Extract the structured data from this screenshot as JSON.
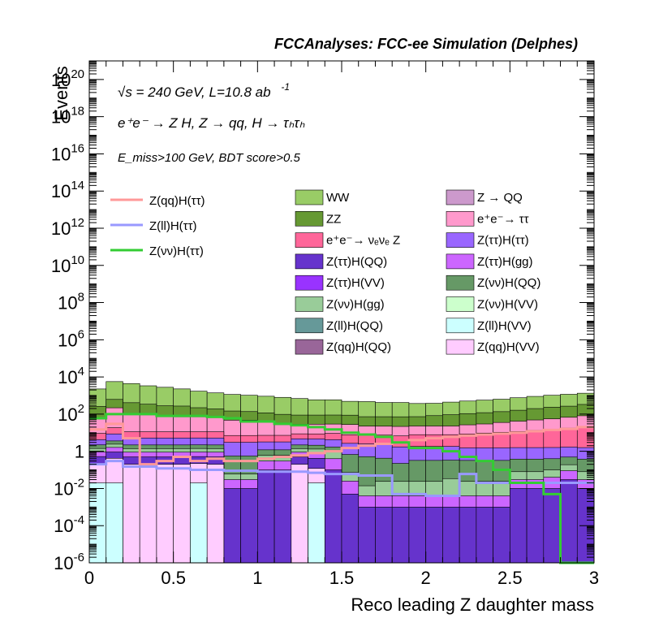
{
  "header": {
    "title": "FCCAnalyses: FCC-ee Simulation (Delphes)"
  },
  "annotations": {
    "energy_line": "√s = 240 GeV, L=10.8 ab",
    "energy_sup": "-1",
    "process_line": "e⁺e⁻ → Z H, Z → qq, H → τₕτₕ",
    "cut_line": "E_miss>100 GeV, BDT score>0.5"
  },
  "chart_data": {
    "type": "area",
    "xlabel": "Reco leading Z daughter mass",
    "ylabel": "Events",
    "xlim": [
      0,
      3
    ],
    "ylim": [
      1e-06,
      1e+21
    ],
    "log_y": true,
    "bin_edges": [
      0,
      0.1,
      0.2,
      0.3,
      0.4,
      0.5,
      0.6,
      0.7,
      0.8,
      0.9,
      1.0,
      1.1,
      1.2,
      1.3,
      1.4,
      1.5,
      1.6,
      1.7,
      1.8,
      1.9,
      2.0,
      2.1,
      2.2,
      2.3,
      2.4,
      2.5,
      2.6,
      2.7,
      2.8,
      2.9,
      3.0
    ],
    "x_ticks": [
      "0",
      "0.5",
      "1",
      "1.5",
      "2",
      "2.5",
      "3"
    ],
    "y_ticks": [
      {
        "base": "10",
        "exp": "-6",
        "value": 1e-06
      },
      {
        "base": "10",
        "exp": "-4",
        "value": 0.0001
      },
      {
        "base": "10",
        "exp": "-2",
        "value": 0.01
      },
      {
        "base": "1",
        "exp": "",
        "value": 1
      },
      {
        "base": "10",
        "exp": "2",
        "value": 100.0
      },
      {
        "base": "10",
        "exp": "4",
        "value": 10000.0
      },
      {
        "base": "10",
        "exp": "6",
        "value": 1000000.0
      },
      {
        "base": "10",
        "exp": "8",
        "value": 100000000.0
      },
      {
        "base": "10",
        "exp": "10",
        "value": 10000000000.0
      },
      {
        "base": "10",
        "exp": "12",
        "value": 1000000000000.0
      },
      {
        "base": "10",
        "exp": "14",
        "value": 100000000000000.0
      },
      {
        "base": "10",
        "exp": "16",
        "value": 1e+16
      },
      {
        "base": "10",
        "exp": "18",
        "value": 1e+18
      },
      {
        "base": "10",
        "exp": "20",
        "value": 1e+20
      }
    ],
    "stack_levels": [
      {
        "name": "Z(ll)H(VV)",
        "color": "#ccffff",
        "values": [
          0.02,
          0.02,
          0,
          0,
          0,
          0,
          0.02,
          0,
          0,
          0,
          0,
          0,
          0,
          0.02,
          0,
          0,
          0,
          0,
          0,
          0,
          0,
          0,
          0,
          0,
          0,
          0,
          0,
          0,
          0,
          0
        ]
      },
      {
        "name": "Z(qq)H(VV)",
        "color": "#ffccff",
        "values": [
          0.2,
          0.4,
          0.2,
          0.2,
          0.2,
          0.2,
          0.2,
          0.2,
          0,
          0,
          0,
          0,
          0.2,
          0.1,
          0,
          0,
          0,
          0,
          0,
          0,
          0,
          0,
          0,
          0,
          0,
          0,
          0,
          0,
          0,
          0
        ]
      },
      {
        "name": "Z(ττ)H(QQ)",
        "color": "#6633cc",
        "values": [
          0.3,
          0.5,
          0.3,
          0.3,
          0.3,
          0.3,
          0.3,
          0.3,
          0.01,
          0.01,
          0.1,
          0.1,
          0.3,
          0.3,
          0.1,
          0.005,
          0.001,
          0.001,
          0.001,
          0.001,
          0.001,
          0.001,
          0.001,
          0.001,
          0.001,
          0.01,
          0.01,
          0.01,
          0.03,
          0.01
        ]
      },
      {
        "name": "Z(ττ)H(gg)",
        "color": "#cc66ff",
        "values": [
          0.4,
          0.7,
          0.4,
          0.4,
          0.4,
          0.4,
          0.4,
          0.4,
          0.02,
          0.02,
          0.2,
          0.2,
          0.4,
          0.4,
          0.3,
          0.02,
          0.003,
          0.003,
          0.003,
          0.003,
          0.003,
          0.003,
          0.003,
          0.003,
          0.003,
          0.02,
          0.02,
          0.03,
          0.06,
          0.02
        ]
      },
      {
        "name": "Z(νν)H(gg)",
        "color": "#99cc99",
        "values": [
          0.5,
          0.8,
          0.5,
          0.5,
          0.5,
          0.5,
          0.5,
          0.5,
          0.03,
          0.03,
          0.3,
          0.3,
          0.5,
          0.5,
          0.5,
          0.05,
          0.01,
          0.02,
          0.02,
          0.02,
          0.02,
          0.03,
          0.02,
          0.02,
          0.02,
          0.05,
          0.05,
          0.06,
          0.1,
          0.05
        ]
      },
      {
        "name": "Z(νν)H(QQ)",
        "color": "#669966",
        "values": [
          0.8,
          1.2,
          0.8,
          0.8,
          0.8,
          0.8,
          0.8,
          0.8,
          0.5,
          0.5,
          0.6,
          0.6,
          0.8,
          0.8,
          0.8,
          0.6,
          0.5,
          0.4,
          0.2,
          0.3,
          0.3,
          0.3,
          0.3,
          0.3,
          0.3,
          0.3,
          0.3,
          0.3,
          0.3,
          0.3
        ]
      },
      {
        "name": "Z(ττ)H(ττ)",
        "color": "#9966ff",
        "values": [
          2,
          5,
          3,
          3,
          3,
          3,
          3,
          3,
          2.5,
          2.5,
          2,
          2,
          2.5,
          2.5,
          2.5,
          2,
          2,
          2,
          1.5,
          1.5,
          1.5,
          1.5,
          1.2,
          1.2,
          1.2,
          1.2,
          1.2,
          1.2,
          1.2,
          1.2
        ]
      },
      {
        "name": "e⁺e⁻ → νₑνₑ Z",
        "color": "#ff6699",
        "values": [
          5,
          10,
          6,
          6,
          6,
          6,
          6,
          6,
          4,
          4,
          4,
          4,
          4,
          4,
          5,
          5,
          5,
          5,
          5,
          6,
          6,
          6,
          7,
          8,
          9,
          10,
          12,
          14,
          16,
          20
        ]
      },
      {
        "name": "e⁺e⁻ → ττ",
        "color": "#ff99cc",
        "values": [
          50,
          200,
          100,
          80,
          70,
          60,
          60,
          60,
          40,
          40,
          30,
          20,
          20,
          20,
          20,
          20,
          15,
          15,
          15,
          15,
          15,
          15,
          18,
          20,
          25,
          30,
          35,
          40,
          50,
          60
        ]
      },
      {
        "name": "ZZ",
        "color": "#669933",
        "values": [
          200,
          400,
          300,
          250,
          200,
          200,
          150,
          120,
          100,
          90,
          80,
          70,
          60,
          60,
          60,
          60,
          50,
          50,
          50,
          50,
          60,
          70,
          80,
          90,
          100,
          120,
          150,
          180,
          200,
          250
        ]
      },
      {
        "name": "WW",
        "color": "#99cc66",
        "values": [
          2000,
          5000,
          4000,
          3000,
          2500,
          2000,
          1500,
          1200,
          1000,
          900,
          800,
          700,
          600,
          500,
          500,
          400,
          400,
          350,
          350,
          300,
          300,
          350,
          400,
          450,
          500,
          600,
          700,
          800,
          900,
          1000
        ]
      }
    ],
    "series": [
      {
        "name": "Z(qq)H(ττ)",
        "color": "#ff9999",
        "values": [
          15,
          30,
          5,
          0.2,
          0.3,
          0.5,
          0.3,
          0.4,
          0.3,
          0.3,
          0.4,
          0.5,
          0.6,
          0.8,
          1,
          1.5,
          2,
          2.5,
          3,
          4,
          5,
          6,
          7,
          8,
          9,
          10,
          12,
          14,
          16,
          20
        ]
      },
      {
        "name": "Z(ll)H(ττ)",
        "color": "#9999ff",
        "values": [
          0.2,
          0.3,
          0.15,
          0.15,
          0.12,
          0.12,
          0.1,
          0.1,
          0.09,
          0.09,
          0.08,
          0.08,
          0.08,
          0.07,
          0.06,
          0.06,
          0.05,
          0.05,
          0.005,
          0.005,
          0.004,
          0.004,
          0.06,
          0.02,
          0.02,
          0.02,
          0.02,
          0.02,
          0.02,
          0.02
        ]
      },
      {
        "name": "Z(νν)H(ττ)",
        "color": "#33cc33",
        "values": [
          60,
          100,
          100,
          100,
          80,
          80,
          80,
          70,
          60,
          40,
          40,
          30,
          25,
          20,
          15,
          10,
          8,
          6,
          3,
          1.5,
          1.5,
          1,
          0.5,
          0.3,
          0.1,
          0.02,
          0.02,
          0.005,
          1e-06,
          1e-06
        ]
      }
    ],
    "legend_signal": [
      "Z(qq)H(ττ)",
      "Z(ll)H(ττ)",
      "Z(νν)H(ττ)"
    ],
    "legend_bkg": [
      {
        "label": "WW",
        "color": "#99cc66"
      },
      {
        "label": "Z → QQ",
        "color": "#cc99cc"
      },
      {
        "label": "ZZ",
        "color": "#669933"
      },
      {
        "label": "e⁺e⁻→ ττ",
        "color": "#ff99cc"
      },
      {
        "label": "e⁺e⁻→ νₑνₑ Z",
        "color": "#ff6699"
      },
      {
        "label": "Z(ττ)H(ττ)",
        "color": "#9966ff"
      },
      {
        "label": "Z(ττ)H(QQ)",
        "color": "#6633cc"
      },
      {
        "label": "Z(ττ)H(gg)",
        "color": "#cc66ff"
      },
      {
        "label": "Z(ττ)H(VV)",
        "color": "#9933ff"
      },
      {
        "label": "Z(νν)H(QQ)",
        "color": "#669966"
      },
      {
        "label": "Z(νν)H(gg)",
        "color": "#99cc99"
      },
      {
        "label": "Z(νν)H(VV)",
        "color": "#ccffcc"
      },
      {
        "label": "Z(ll)H(QQ)",
        "color": "#669999"
      },
      {
        "label": "Z(ll)H(VV)",
        "color": "#ccffff"
      },
      {
        "label": "Z(qq)H(QQ)",
        "color": "#996699"
      },
      {
        "label": "Z(qq)H(VV)",
        "color": "#ffccff"
      }
    ]
  }
}
